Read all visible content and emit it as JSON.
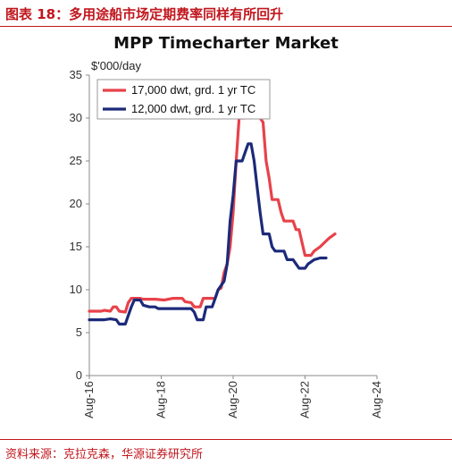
{
  "figure": {
    "label": "图表 18：多用途船市场定期费率同样有所回升",
    "source": "资料来源：克拉克森，华源证券研究所"
  },
  "colors": {
    "accent": "#c0161d",
    "series_red": "#e8424a",
    "series_blue": "#1c2a7a"
  },
  "chart_data": {
    "type": "line",
    "title": "MPP Timecharter Market",
    "ylabel": "$'000/day",
    "xlabel": "",
    "ylim": [
      0,
      35
    ],
    "yticks": [
      0,
      5,
      10,
      15,
      20,
      25,
      30,
      35
    ],
    "xlim": [
      "2016-08",
      "2024-08"
    ],
    "xticks": [
      "Aug-16",
      "Aug-18",
      "Aug-20",
      "Aug-22",
      "Aug-24"
    ],
    "grid": false,
    "legend_position": "top-left",
    "series": [
      {
        "name": "17,000 dwt, grd. 1 yr TC",
        "color": "#e8424a",
        "points": [
          [
            "2016-08",
            7.5
          ],
          [
            "2016-12",
            7.5
          ],
          [
            "2017-01",
            7.6
          ],
          [
            "2017-03",
            7.5
          ],
          [
            "2017-04",
            8.0
          ],
          [
            "2017-05",
            8.0
          ],
          [
            "2017-06",
            7.5
          ],
          [
            "2017-08",
            7.4
          ],
          [
            "2017-09",
            8.5
          ],
          [
            "2017-10",
            9.0
          ],
          [
            "2018-01",
            9.0
          ],
          [
            "2018-02",
            8.9
          ],
          [
            "2018-06",
            8.9
          ],
          [
            "2018-09",
            8.8
          ],
          [
            "2018-12",
            9.0
          ],
          [
            "2019-03",
            9.0
          ],
          [
            "2019-04",
            8.6
          ],
          [
            "2019-06",
            8.5
          ],
          [
            "2019-07",
            8.0
          ],
          [
            "2019-09",
            8.0
          ],
          [
            "2019-10",
            9.0
          ],
          [
            "2020-02",
            9.0
          ],
          [
            "2020-03",
            10.0
          ],
          [
            "2020-04",
            10.2
          ],
          [
            "2020-05",
            12.0
          ],
          [
            "2020-06",
            13.0
          ],
          [
            "2020-07",
            15.0
          ],
          [
            "2020-08",
            19.0
          ],
          [
            "2020-09",
            25.0
          ],
          [
            "2020-10",
            30.0
          ],
          [
            "2020-12",
            30.0
          ],
          [
            "2021-01",
            31.0
          ],
          [
            "2021-02",
            32.0
          ],
          [
            "2021-03",
            32.0
          ],
          [
            "2021-04",
            31.5
          ],
          [
            "2021-05",
            30.0
          ],
          [
            "2021-06",
            29.5
          ],
          [
            "2021-07",
            25.0
          ],
          [
            "2021-08",
            23.0
          ],
          [
            "2021-09",
            20.5
          ],
          [
            "2021-11",
            20.5
          ],
          [
            "2021-12",
            19.0
          ],
          [
            "2022-01",
            18.0
          ],
          [
            "2022-04",
            18.0
          ],
          [
            "2022-05",
            17.0
          ],
          [
            "2022-06",
            17.0
          ],
          [
            "2022-07",
            15.5
          ],
          [
            "2022-08",
            14.0
          ],
          [
            "2022-10",
            14.0
          ],
          [
            "2022-11",
            14.5
          ],
          [
            "2023-01",
            15.0
          ],
          [
            "2023-04",
            16.0
          ],
          [
            "2023-06",
            16.5
          ]
        ]
      },
      {
        "name": "12,000 dwt, grd. 1 yr TC",
        "color": "#1c2a7a",
        "points": [
          [
            "2016-08",
            6.5
          ],
          [
            "2017-01",
            6.5
          ],
          [
            "2017-03",
            6.6
          ],
          [
            "2017-05",
            6.5
          ],
          [
            "2017-06",
            6.0
          ],
          [
            "2017-08",
            6.0
          ],
          [
            "2017-09",
            7.0
          ],
          [
            "2017-10",
            8.0
          ],
          [
            "2017-11",
            8.8
          ],
          [
            "2018-01",
            8.8
          ],
          [
            "2018-02",
            8.2
          ],
          [
            "2018-04",
            8.0
          ],
          [
            "2018-06",
            8.0
          ],
          [
            "2018-07",
            7.8
          ],
          [
            "2019-06",
            7.8
          ],
          [
            "2019-07",
            7.4
          ],
          [
            "2019-08",
            6.5
          ],
          [
            "2019-10",
            6.5
          ],
          [
            "2019-11",
            8.0
          ],
          [
            "2020-01",
            8.0
          ],
          [
            "2020-02",
            9.0
          ],
          [
            "2020-03",
            10.0
          ],
          [
            "2020-05",
            11.0
          ],
          [
            "2020-06",
            13.0
          ],
          [
            "2020-07",
            18.0
          ],
          [
            "2020-08",
            21.0
          ],
          [
            "2020-09",
            25.0
          ],
          [
            "2020-11",
            25.0
          ],
          [
            "2020-12",
            26.0
          ],
          [
            "2021-01",
            27.0
          ],
          [
            "2021-02",
            27.0
          ],
          [
            "2021-03",
            25.0
          ],
          [
            "2021-04",
            22.0
          ],
          [
            "2021-05",
            19.0
          ],
          [
            "2021-06",
            16.5
          ],
          [
            "2021-08",
            16.5
          ],
          [
            "2021-09",
            15.0
          ],
          [
            "2021-10",
            14.5
          ],
          [
            "2022-01",
            14.5
          ],
          [
            "2022-02",
            13.5
          ],
          [
            "2022-04",
            13.5
          ],
          [
            "2022-05",
            13.0
          ],
          [
            "2022-06",
            12.5
          ],
          [
            "2022-08",
            12.5
          ],
          [
            "2022-09",
            13.0
          ],
          [
            "2022-11",
            13.5
          ],
          [
            "2023-01",
            13.7
          ],
          [
            "2023-03",
            13.7
          ]
        ]
      }
    ]
  }
}
